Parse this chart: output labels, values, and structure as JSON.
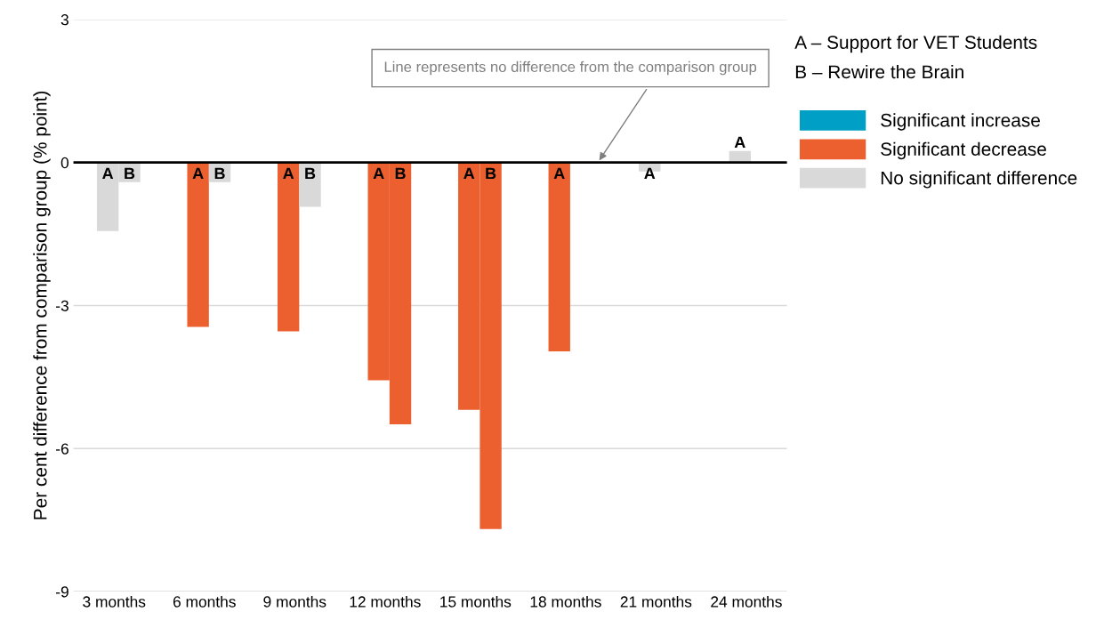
{
  "chart_data": {
    "type": "bar",
    "ylabel": "Per cent difference from comparison group (% point)",
    "categories": [
      "3 months",
      "6 months",
      "9 months",
      "12 months",
      "15 months",
      "18 months",
      "21 months",
      "24 months"
    ],
    "ylim": [
      -9,
      3
    ],
    "yticks": [
      -9,
      -6,
      -3,
      0,
      3
    ],
    "grid": "y",
    "legend": "top right",
    "series": [
      {
        "values": [
          -1.44,
          -3.45,
          -3.54,
          -4.57,
          -5.19,
          -3.96,
          -0.19,
          0.24
        ],
        "colors": [
          "#d9d9d9",
          "#ec6030",
          "#ec6030",
          "#ec6030",
          "#ec6030",
          "#ec6030",
          "#d9d9d9",
          "#d9d9d9"
        ],
        "value_labels": [
          "A",
          "A",
          "A",
          "A",
          "A",
          "A",
          "A",
          "A"
        ]
      },
      {
        "values": [
          -0.41,
          -0.41,
          -0.93,
          -5.49,
          -7.69,
          null,
          null,
          null
        ],
        "colors": [
          "#d9d9d9",
          "#d9d9d9",
          "#d9d9d9",
          "#ec6030",
          "#ec6030",
          null,
          null,
          null
        ],
        "value_labels": [
          "B",
          "B",
          "B",
          "B",
          "B",
          null,
          null,
          null
        ]
      },
      {
        "name": "Significant increase",
        "color": "#00a0c6",
        "values": [
          null,
          null,
          null,
          null,
          null,
          null,
          null,
          null
        ]
      },
      {
        "name": "Significant decrease",
        "color": "#ec6030",
        "values": [
          null,
          null,
          null,
          null,
          null,
          null,
          null,
          null
        ]
      },
      {
        "name": "No significant difference",
        "color": "#d9d9d9",
        "values": [
          null,
          null,
          null,
          null,
          null,
          null,
          null,
          null
        ]
      }
    ],
    "ref_lines": [
      {
        "axis": "y",
        "value": 0,
        "label": "Line represents no difference from the comparison group",
        "color": "#000000"
      }
    ],
    "annotations": [
      "A – Support for VET Students",
      "B – Rewire the Brain"
    ]
  }
}
